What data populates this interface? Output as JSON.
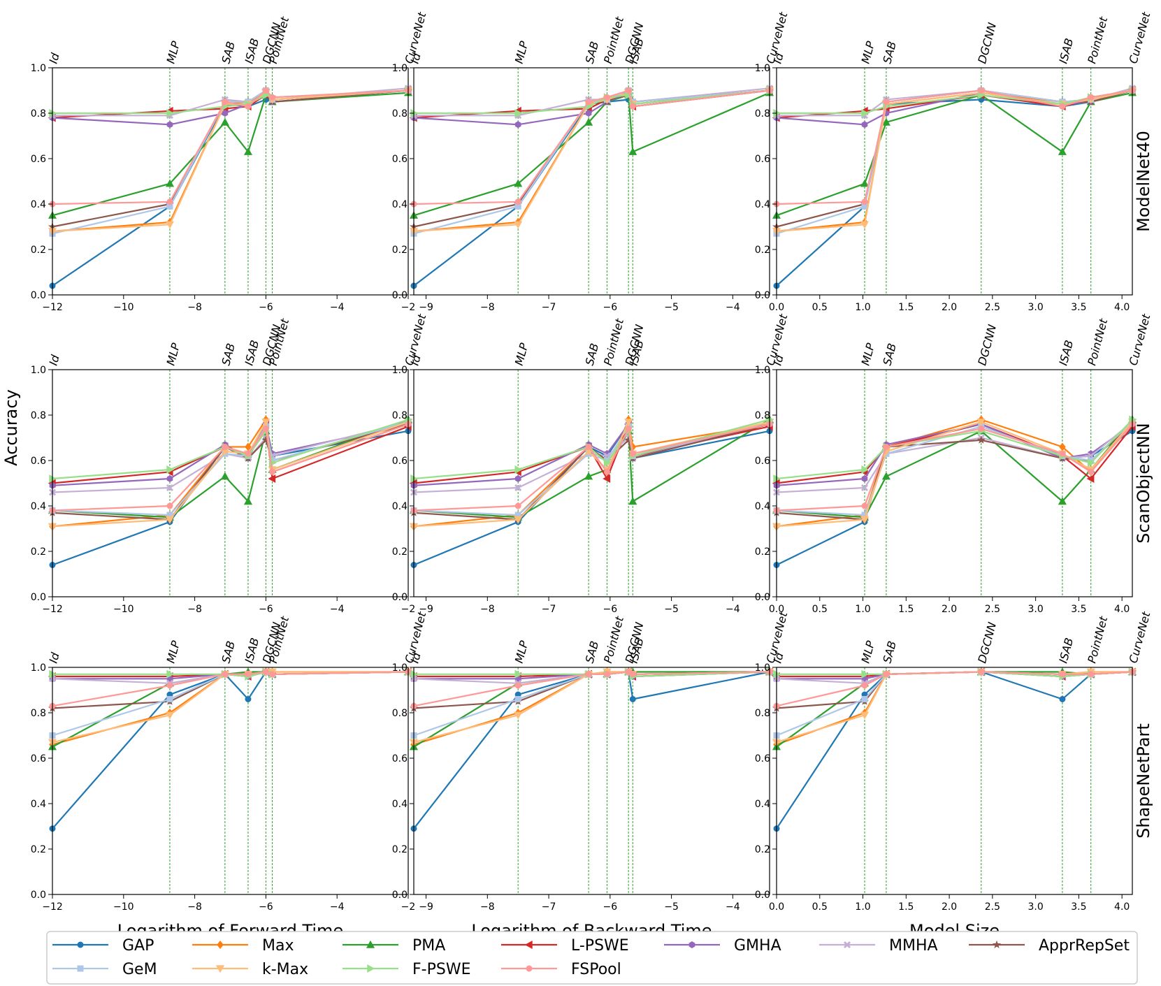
{
  "figure": {
    "ylabel": "Accuracy",
    "row_labels": [
      "ModelNet40",
      "ScanObjectNN",
      "ShapeNetPart"
    ],
    "col_xlabels": [
      "Logarithm of Forward Time",
      "Logarithm of Backward Time",
      "Model Size"
    ]
  },
  "legend": {
    "entries": [
      {
        "name": "GAP",
        "color": "#1f77b4",
        "marker": "circle"
      },
      {
        "name": "Max",
        "color": "#ff7f0e",
        "marker": "diamond"
      },
      {
        "name": "PMA",
        "color": "#2ca02c",
        "marker": "triangle-up"
      },
      {
        "name": "L-PSWE",
        "color": "#d62728",
        "marker": "triangle-left"
      },
      {
        "name": "GMHA",
        "color": "#9467bd",
        "marker": "hexagon"
      },
      {
        "name": "MMHA",
        "color": "#c5b0d5",
        "marker": "x"
      },
      {
        "name": "ApprRepSet",
        "color": "#8c564b",
        "marker": "star"
      },
      {
        "name": "GeM",
        "color": "#aec7e8",
        "marker": "square"
      },
      {
        "name": "k-Max",
        "color": "#ffbb78",
        "marker": "triangle-down"
      },
      {
        "name": "F-PSWE",
        "color": "#98df8a",
        "marker": "triangle-right"
      },
      {
        "name": "FSPool",
        "color": "#ff9896",
        "marker": "circle"
      }
    ]
  },
  "chart_data": {
    "type": "line",
    "series_names": [
      "GAP",
      "Max",
      "PMA",
      "L-PSWE",
      "GMHA",
      "MMHA",
      "ApprRepSet",
      "GeM",
      "k-Max",
      "F-PSWE",
      "FSPool"
    ],
    "architectures": [
      "Id",
      "MLP",
      "SAB",
      "ISAB",
      "DGCNN",
      "PointNet",
      "CurveNet"
    ],
    "ylim": [
      0,
      1.0
    ],
    "yticks": [
      0.0,
      0.2,
      0.4,
      0.6,
      0.8,
      1.0
    ],
    "y_tick_labels": [
      "0.0",
      "0.2",
      "0.4",
      "0.6",
      "0.8",
      "1.0"
    ],
    "columns": [
      {
        "xlabel": "Logarithm of Forward Time",
        "xlim": [
          -12,
          -2
        ],
        "xticks": [
          -12,
          -10,
          -8,
          -6,
          -4,
          -2
        ],
        "x_tick_labels": [
          "−12",
          "−10",
          "−8",
          "−6",
          "−4",
          "−2"
        ],
        "arch_x": [
          -12.0,
          -8.7,
          -7.15,
          -6.5,
          -6.0,
          -5.82,
          -2.0
        ]
      },
      {
        "xlabel": "Logarithm of Backward Time",
        "xlim": [
          -9.2,
          -3.4
        ],
        "xticks": [
          -9,
          -8,
          -7,
          -6,
          -5,
          -4
        ],
        "x_tick_labels": [
          "−9",
          "−8",
          "−7",
          "−6",
          "−5",
          "−4"
        ],
        "arch_x": [
          -9.2,
          -7.5,
          -6.35,
          -5.63,
          -5.7,
          -6.05,
          -3.4
        ]
      },
      {
        "xlabel": "Model Size",
        "xlim": [
          0.0,
          4.12
        ],
        "xticks": [
          0.0,
          0.5,
          1.0,
          1.5,
          2.0,
          2.5,
          3.0,
          3.5,
          4.0
        ],
        "x_tick_labels": [
          "0.0",
          "0.5",
          "1.0",
          "1.5",
          "2.0",
          "2.5",
          "3.0",
          "3.5",
          "4.0"
        ],
        "arch_x": [
          0.0,
          1.02,
          1.27,
          3.31,
          2.37,
          3.64,
          4.12
        ]
      }
    ],
    "rows": [
      {
        "dataset": "ModelNet40",
        "values": {
          "GAP": [
            0.04,
            0.39,
            0.84,
            0.83,
            0.86,
            0.85,
            0.9
          ],
          "Max": [
            0.28,
            0.32,
            0.84,
            0.85,
            0.89,
            0.86,
            0.9
          ],
          "PMA": [
            0.35,
            0.49,
            0.76,
            0.63,
            0.88,
            0.85,
            0.89
          ],
          "L-PSWE": [
            0.78,
            0.81,
            0.82,
            0.83,
            0.88,
            0.86,
            0.9
          ],
          "GMHA": [
            0.78,
            0.75,
            0.8,
            0.84,
            0.89,
            0.85,
            0.9
          ],
          "MMHA": [
            0.79,
            0.79,
            0.86,
            0.85,
            0.9,
            0.86,
            0.91
          ],
          "ApprRepSet": [
            0.3,
            0.4,
            0.85,
            0.85,
            0.9,
            0.85,
            0.9
          ],
          "GeM": [
            0.27,
            0.39,
            0.85,
            0.85,
            0.9,
            0.86,
            0.9
          ],
          "k-Max": [
            0.28,
            0.31,
            0.84,
            0.84,
            0.89,
            0.86,
            0.9
          ],
          "F-PSWE": [
            0.8,
            0.8,
            0.83,
            0.84,
            0.88,
            0.87,
            0.9
          ],
          "FSPool": [
            0.4,
            0.41,
            0.85,
            0.83,
            0.9,
            0.87,
            0.9
          ]
        }
      },
      {
        "dataset": "ScanObjectNN",
        "values": {
          "GAP": [
            0.14,
            0.33,
            0.66,
            0.61,
            0.76,
            0.62,
            0.73
          ],
          "Max": [
            0.31,
            0.36,
            0.66,
            0.66,
            0.78,
            0.55,
            0.76
          ],
          "PMA": [
            0.38,
            0.35,
            0.53,
            0.42,
            0.73,
            0.56,
            0.78
          ],
          "L-PSWE": [
            0.5,
            0.55,
            0.66,
            0.62,
            0.76,
            0.52,
            0.75
          ],
          "GMHA": [
            0.49,
            0.52,
            0.67,
            0.61,
            0.76,
            0.63,
            0.76
          ],
          "MMHA": [
            0.46,
            0.48,
            0.63,
            0.61,
            0.7,
            0.62,
            0.77
          ],
          "ApprRepSet": [
            0.37,
            0.34,
            0.66,
            0.61,
            0.69,
            0.6,
            0.76
          ],
          "GeM": [
            0.38,
            0.36,
            0.63,
            0.62,
            0.75,
            0.6,
            0.77
          ],
          "k-Max": [
            0.31,
            0.34,
            0.64,
            0.63,
            0.77,
            0.56,
            0.77
          ],
          "F-PSWE": [
            0.52,
            0.56,
            0.66,
            0.62,
            0.73,
            0.59,
            0.78
          ],
          "FSPool": [
            0.38,
            0.4,
            0.66,
            0.63,
            0.74,
            0.55,
            0.76
          ]
        }
      },
      {
        "dataset": "ShapeNetPart",
        "values": {
          "GAP": [
            0.29,
            0.88,
            0.97,
            0.86,
            0.98,
            0.97,
            0.98
          ],
          "Max": [
            0.66,
            0.8,
            0.97,
            0.97,
            0.98,
            0.98,
            0.98
          ],
          "PMA": [
            0.65,
            0.93,
            0.97,
            0.98,
            0.98,
            0.97,
            0.98
          ],
          "L-PSWE": [
            0.96,
            0.96,
            0.97,
            0.96,
            0.98,
            0.97,
            0.98
          ],
          "GMHA": [
            0.95,
            0.95,
            0.97,
            0.96,
            0.98,
            0.97,
            0.98
          ],
          "MMHA": [
            0.95,
            0.93,
            0.97,
            0.97,
            0.98,
            0.97,
            0.98
          ],
          "ApprRepSet": [
            0.82,
            0.85,
            0.97,
            0.97,
            0.98,
            0.97,
            0.98
          ],
          "GeM": [
            0.7,
            0.86,
            0.97,
            0.97,
            0.98,
            0.97,
            0.98
          ],
          "k-Max": [
            0.67,
            0.79,
            0.97,
            0.97,
            0.98,
            0.98,
            0.98
          ],
          "F-PSWE": [
            0.97,
            0.97,
            0.97,
            0.96,
            0.98,
            0.97,
            0.98
          ],
          "FSPool": [
            0.83,
            0.92,
            0.97,
            0.97,
            0.98,
            0.97,
            0.98
          ]
        }
      }
    ]
  }
}
